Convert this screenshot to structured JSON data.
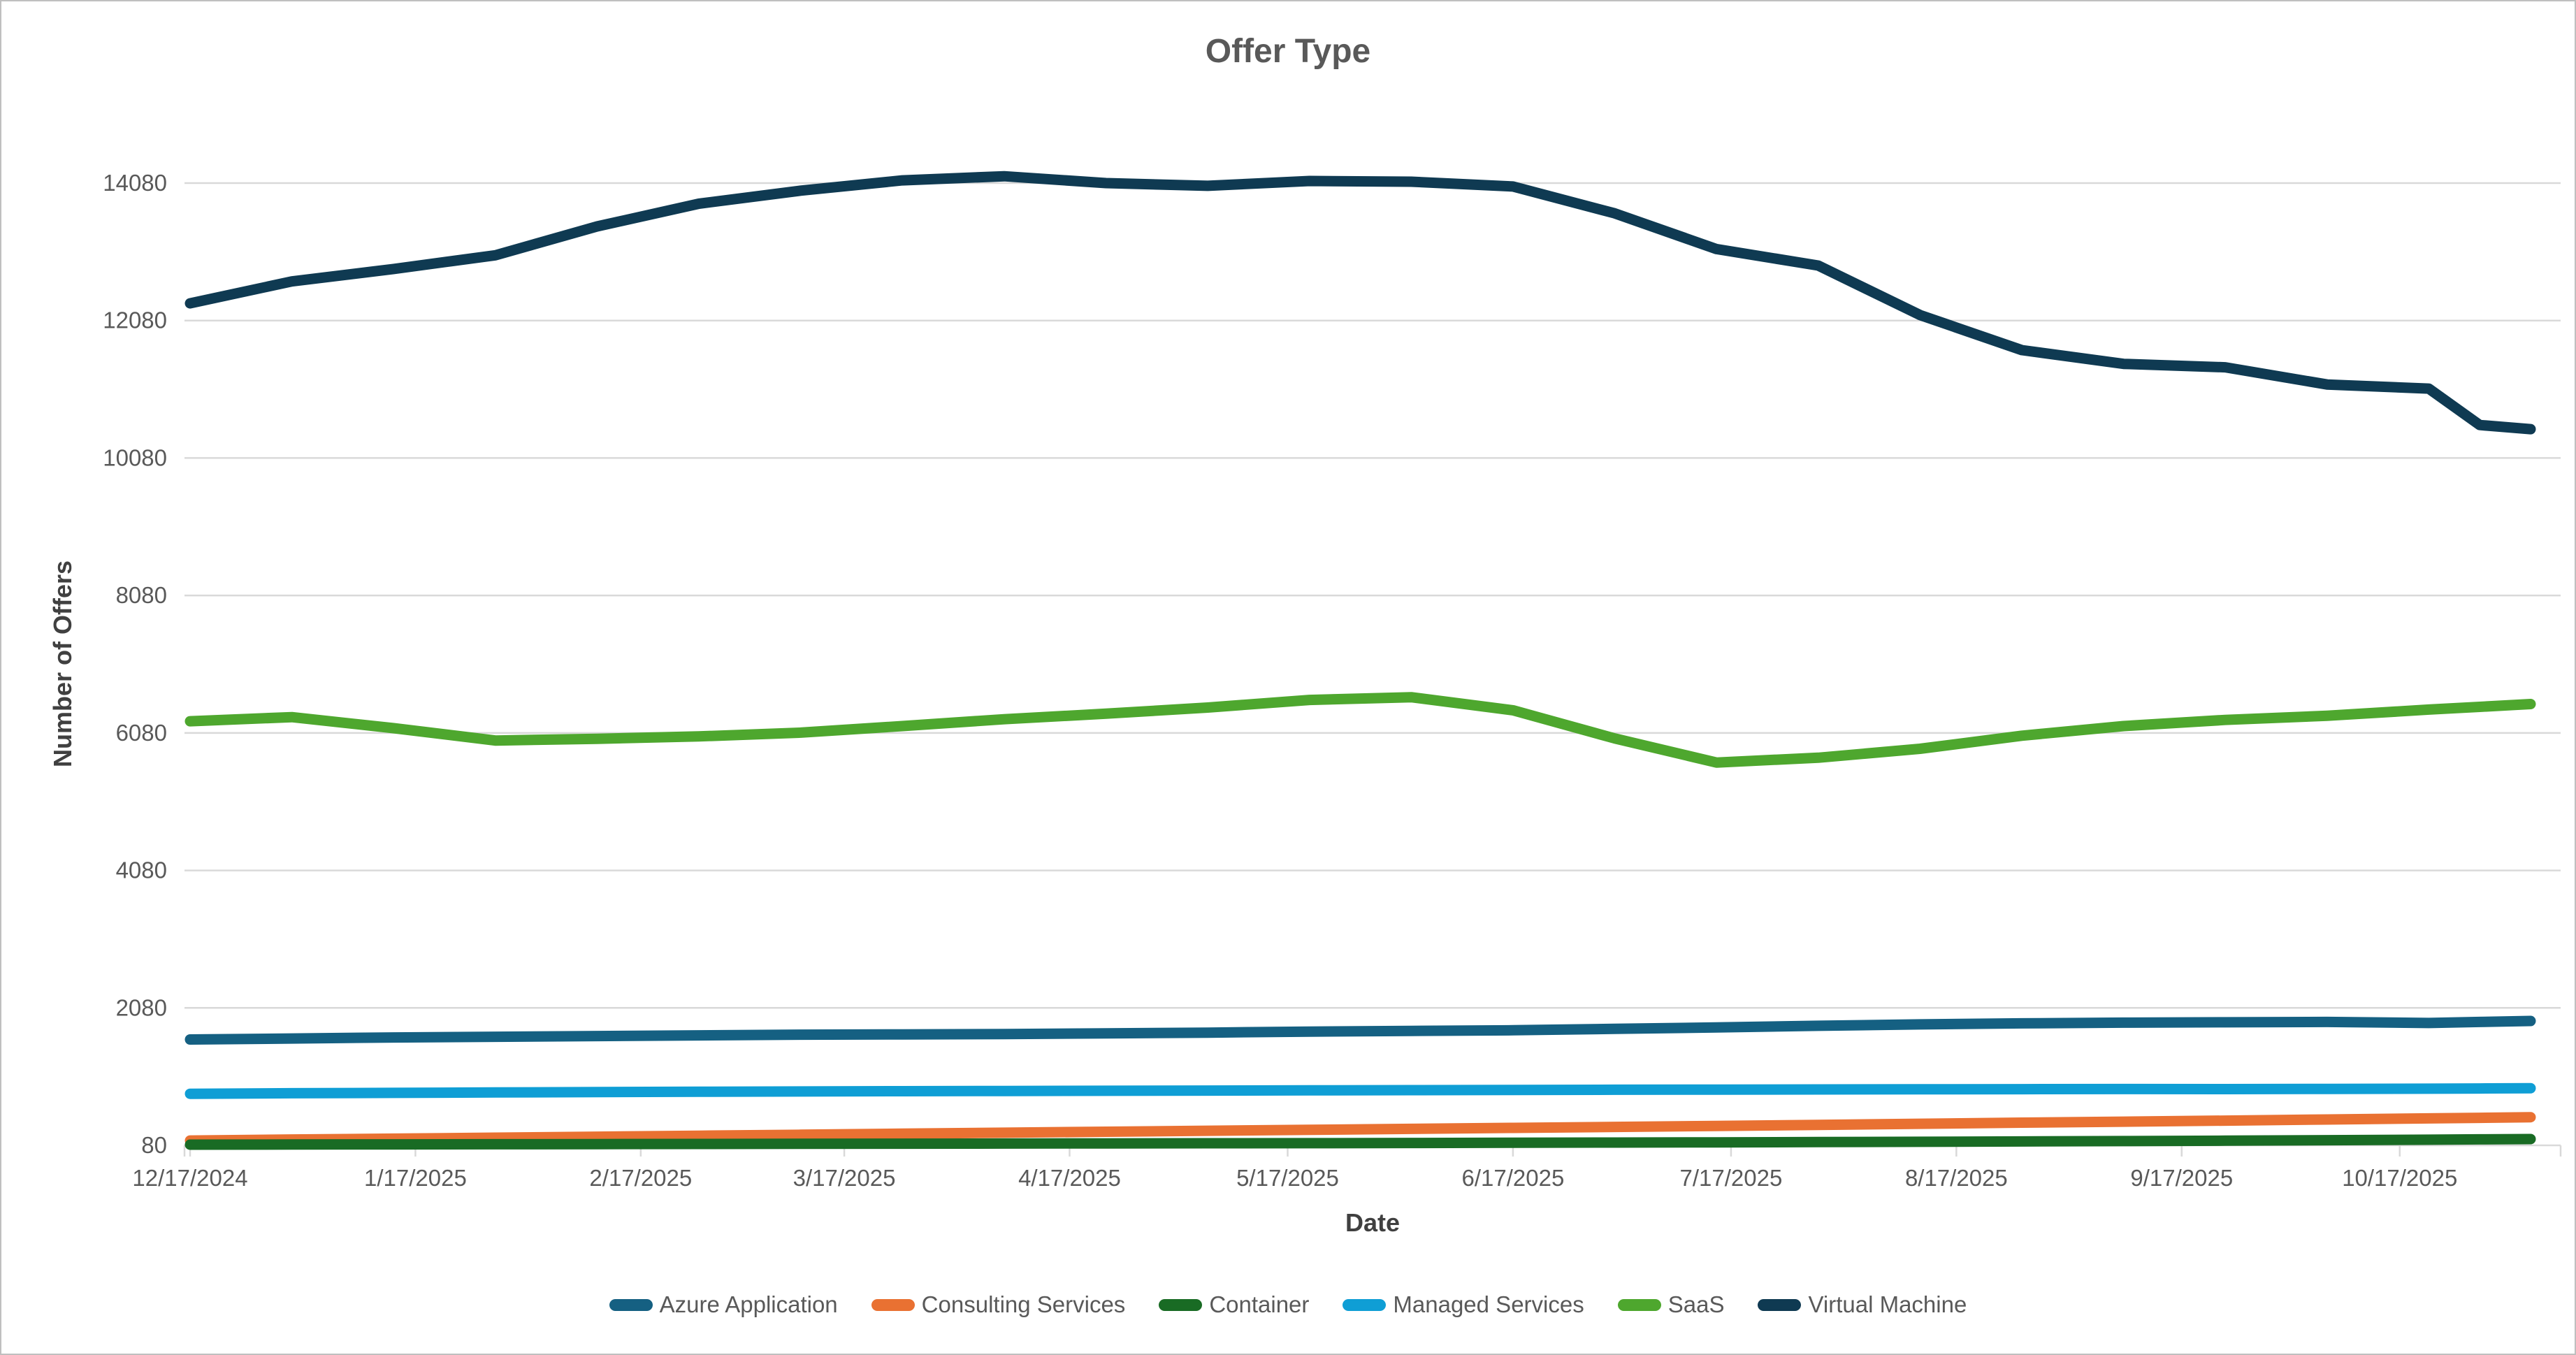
{
  "chart_data": {
    "type": "line",
    "title": "Offer Type",
    "xlabel": "Date",
    "ylabel": "Number of Offers",
    "x": [
      "12/17/2024",
      "12/31/2024",
      "1/14/2025",
      "1/28/2025",
      "2/11/2025",
      "2/25/2025",
      "3/11/2025",
      "3/25/2025",
      "4/8/2025",
      "4/22/2025",
      "5/6/2025",
      "5/20/2025",
      "6/3/2025",
      "6/17/2025",
      "7/1/2025",
      "7/15/2025",
      "7/29/2025",
      "8/12/2025",
      "8/26/2025",
      "9/9/2025",
      "9/23/2025",
      "10/7/2025",
      "10/21/2025",
      "10/28/2025",
      "11/4/2025"
    ],
    "x_tick_labels": [
      "12/17/2024",
      "1/17/2025",
      "2/17/2025",
      "3/17/2025",
      "4/17/2025",
      "5/17/2025",
      "6/17/2025",
      "7/17/2025",
      "8/17/2025",
      "9/17/2025",
      "10/17/2025"
    ],
    "y_ticks": [
      80,
      2080,
      4080,
      6080,
      8080,
      10080,
      12080,
      14080
    ],
    "ylim": [
      80,
      14080
    ],
    "grid": "horizontal",
    "legend_position": "bottom",
    "series": [
      {
        "name": "Azure Application",
        "color": "#156082",
        "values": [
          1620,
          1635,
          1650,
          1660,
          1670,
          1680,
          1690,
          1695,
          1700,
          1710,
          1720,
          1735,
          1745,
          1755,
          1775,
          1795,
          1820,
          1840,
          1855,
          1865,
          1870,
          1875,
          1860,
          1875,
          1890
        ]
      },
      {
        "name": "Consulting Services",
        "color": "#E97132",
        "values": [
          150,
          165,
          178,
          192,
          206,
          220,
          235,
          250,
          264,
          278,
          292,
          306,
          320,
          334,
          348,
          363,
          378,
          394,
          410,
          425,
          440,
          456,
          472,
          481,
          490
        ]
      },
      {
        "name": "Container",
        "color": "#196B24",
        "values": [
          90,
          92,
          94,
          96,
          98,
          100,
          102,
          104,
          106,
          108,
          110,
          112,
          115,
          118,
          121,
          124,
          128,
          132,
          137,
          142,
          148,
          155,
          162,
          167,
          172
        ]
      },
      {
        "name": "Managed Services",
        "color": "#0F9ED5",
        "values": [
          830,
          838,
          844,
          850,
          856,
          860,
          864,
          868,
          871,
          874,
          877,
          880,
          883,
          886,
          889,
          891,
          893,
          895,
          897,
          899,
          898,
          901,
          905,
          908,
          912
        ]
      },
      {
        "name": "SaaS",
        "color": "#4EA72E",
        "values": [
          6250,
          6310,
          6150,
          5970,
          5995,
          6030,
          6085,
          6180,
          6280,
          6360,
          6450,
          6560,
          6600,
          6410,
          6000,
          5650,
          5720,
          5850,
          6040,
          6180,
          6270,
          6330,
          6420,
          6460,
          6500
        ]
      },
      {
        "name": "Virtual Machine",
        "color": "#0F3A52",
        "values": [
          12330,
          12650,
          12830,
          13030,
          13450,
          13780,
          13970,
          14120,
          14180,
          14080,
          14040,
          14110,
          14100,
          14030,
          13640,
          13120,
          12880,
          12160,
          11650,
          11450,
          11400,
          11150,
          11090,
          10560,
          10500
        ]
      }
    ],
    "style": {
      "grid_color": "#D9D9D9",
      "axis_color": "#D9D9D9",
      "tick_label_color": "#595959",
      "title_color": "#595959",
      "axis_title_color": "#404040",
      "background": "#FFFFFF"
    }
  }
}
